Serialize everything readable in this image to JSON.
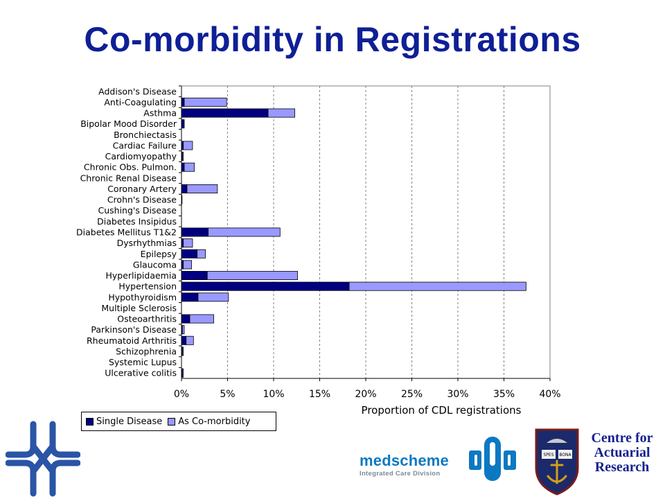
{
  "title": "Co-morbidity in Registrations",
  "legend": {
    "series1": "Single Disease",
    "series2": "As Co-morbidity"
  },
  "colors": {
    "title": "#0f1f96",
    "single": "#000080",
    "comorb": "#9999ff",
    "logo_blue": "#2a55a6",
    "medscheme_blue": "#0b79c2",
    "car_blue": "#15208f"
  },
  "logos": {
    "medscheme_name": "medscheme",
    "medscheme_sub": "Integrated Care Division",
    "car_lines": [
      "Centre for",
      "Actuarial",
      "Research"
    ],
    "crest_motto_left": "SPES",
    "crest_motto_right": "BONA"
  },
  "chart_data": {
    "type": "bar",
    "orientation": "horizontal",
    "stacked": true,
    "title": "",
    "xlabel": "Proportion of CDL registrations",
    "ylabel": "",
    "xlim": [
      0,
      40
    ],
    "xticks": [
      "0%",
      "5%",
      "10%",
      "15%",
      "20%",
      "25%",
      "30%",
      "35%",
      "40%"
    ],
    "xtick_values": [
      0,
      5,
      10,
      15,
      20,
      25,
      30,
      35,
      40
    ],
    "grid": "vertical dashed",
    "legend_position": "bottom-left",
    "categories": [
      "Addison's Disease",
      "Anti-Coagulating",
      "Asthma",
      "Bipolar Mood Disorder",
      "Bronchiectasis",
      "Cardiac Failure",
      "Cardiomyopathy",
      "Chronic Obs. Pulmon.",
      "Chronic Renal Disease",
      "Coronary Artery",
      "Crohn's Disease",
      "Cushing's Disease",
      "Diabetes Insipidus",
      "Diabetes Mellitus T1&2",
      "Dysrhythmias",
      "Epilepsy",
      "Glaucoma",
      "Hyperlipidaemia",
      "Hypertension",
      "Hypothyroidism",
      "Multiple Sclerosis",
      "Osteoarthritis",
      "Parkinson's Disease",
      "Rheumatoid Arthritis",
      "Schizophrenia",
      "Systemic Lupus",
      "Ulcerative colitis"
    ],
    "series": [
      {
        "name": "Single Disease",
        "values": [
          0.0,
          0.3,
          9.4,
          0.3,
          0.0,
          0.2,
          0.1,
          0.3,
          0.0,
          0.6,
          0.05,
          0.0,
          0.0,
          2.9,
          0.2,
          1.7,
          0.2,
          2.8,
          18.2,
          1.8,
          0.0,
          0.9,
          0.1,
          0.5,
          0.1,
          0.0,
          0.1
        ]
      },
      {
        "name": "As Co-morbidity",
        "values": [
          0.0,
          4.6,
          2.9,
          0.0,
          0.0,
          1.0,
          0.1,
          1.1,
          0.0,
          3.3,
          0.0,
          0.0,
          0.0,
          7.8,
          1.0,
          0.9,
          0.9,
          9.8,
          19.2,
          3.3,
          0.0,
          2.6,
          0.2,
          0.8,
          0.1,
          0.0,
          0.1
        ]
      }
    ]
  }
}
